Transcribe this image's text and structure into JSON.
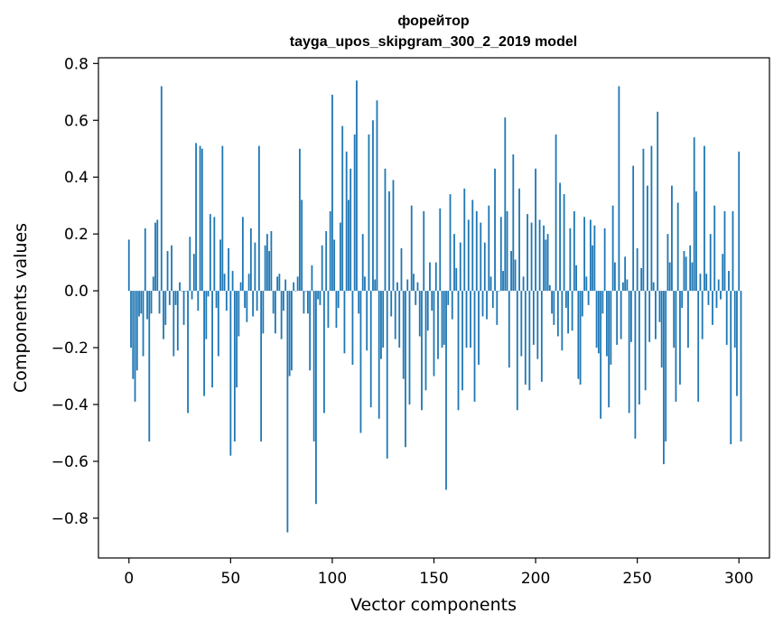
{
  "chart_data": {
    "type": "bar",
    "title_lines": [
      "форейтор",
      "tayga_upos_skipgram_300_2_2019 model"
    ],
    "xlabel": "Vector components",
    "ylabel": "Components values",
    "xlim": [
      -15,
      315
    ],
    "ylim": [
      -0.94,
      0.82
    ],
    "xticks": [
      0,
      50,
      100,
      150,
      200,
      250,
      300
    ],
    "yticks": [
      0.8,
      0.6,
      0.4,
      0.2,
      0.0,
      -0.2,
      -0.4,
      -0.6,
      -0.8
    ],
    "ytick_labels": [
      "0.8",
      "0.6",
      "0.4",
      "0.2",
      "0.0",
      "−0.2",
      "−0.4",
      "−0.6",
      "−0.8"
    ],
    "bar_color": "#1f77b4",
    "grid": false,
    "legend": "none",
    "values": [
      0.18,
      -0.2,
      -0.31,
      -0.39,
      -0.28,
      -0.09,
      -0.08,
      -0.23,
      0.22,
      -0.1,
      -0.53,
      -0.08,
      0.05,
      0.24,
      0.25,
      -0.08,
      0.72,
      -0.17,
      -0.12,
      0.14,
      -0.05,
      0.16,
      -0.23,
      -0.05,
      -0.21,
      0.03,
      0.0,
      -0.12,
      0.0,
      -0.43,
      0.19,
      -0.03,
      0.13,
      0.52,
      -0.07,
      0.51,
      0.5,
      -0.37,
      -0.17,
      -0.02,
      0.27,
      -0.34,
      0.26,
      -0.06,
      -0.23,
      0.18,
      0.51,
      0.06,
      -0.07,
      0.15,
      -0.58,
      0.07,
      -0.53,
      -0.34,
      -0.16,
      0.03,
      0.26,
      -0.06,
      -0.11,
      0.06,
      0.22,
      -0.09,
      0.17,
      -0.07,
      0.51,
      -0.53,
      -0.15,
      0.16,
      0.2,
      0.14,
      0.21,
      -0.08,
      -0.15,
      0.05,
      0.06,
      -0.17,
      -0.07,
      0.04,
      -0.85,
      -0.3,
      -0.28,
      0.03,
      0.0,
      0.05,
      0.5,
      0.32,
      -0.08,
      0.0,
      -0.08,
      -0.28,
      0.09,
      -0.53,
      -0.75,
      -0.03,
      -0.05,
      0.16,
      -0.43,
      0.21,
      -0.13,
      0.28,
      0.69,
      0.18,
      -0.13,
      -0.06,
      0.24,
      0.58,
      -0.22,
      0.49,
      0.32,
      0.43,
      -0.26,
      0.55,
      0.74,
      -0.08,
      -0.5,
      0.2,
      0.05,
      -0.21,
      0.55,
      -0.41,
      0.6,
      0.04,
      0.67,
      -0.45,
      -0.24,
      -0.2,
      0.43,
      -0.59,
      0.35,
      -0.09,
      0.39,
      -0.17,
      0.03,
      -0.2,
      0.15,
      -0.31,
      -0.55,
      0.04,
      -0.4,
      0.3,
      0.06,
      -0.05,
      0.03,
      -0.16,
      -0.42,
      0.28,
      -0.35,
      -0.14,
      0.1,
      -0.07,
      -0.3,
      0.1,
      -0.24,
      0.29,
      -0.2,
      -0.19,
      -0.7,
      -0.05,
      0.34,
      -0.1,
      0.2,
      0.08,
      -0.42,
      0.17,
      -0.35,
      0.36,
      -0.2,
      0.25,
      -0.2,
      0.32,
      -0.39,
      0.28,
      -0.26,
      0.24,
      -0.09,
      0.17,
      -0.1,
      0.3,
      0.05,
      -0.06,
      0.43,
      -0.12,
      0.0,
      0.26,
      0.07,
      0.61,
      0.28,
      -0.27,
      0.14,
      0.48,
      0.11,
      -0.42,
      0.36,
      -0.23,
      0.05,
      -0.33,
      0.27,
      -0.35,
      0.24,
      -0.19,
      0.43,
      -0.24,
      0.25,
      -0.32,
      0.23,
      0.18,
      0.2,
      0.02,
      -0.08,
      -0.12,
      0.55,
      -0.16,
      0.38,
      -0.21,
      0.34,
      -0.06,
      -0.15,
      0.22,
      -0.14,
      0.28,
      0.09,
      -0.31,
      -0.33,
      -0.09,
      0.26,
      0.05,
      -0.05,
      0.25,
      0.16,
      0.23,
      -0.2,
      -0.22,
      -0.45,
      -0.08,
      0.22,
      -0.23,
      -0.41,
      -0.26,
      0.3,
      0.1,
      -0.19,
      0.72,
      -0.17,
      0.03,
      0.12,
      0.04,
      -0.43,
      -0.18,
      0.44,
      -0.52,
      0.15,
      -0.4,
      0.08,
      0.5,
      -0.35,
      0.37,
      -0.18,
      0.51,
      0.03,
      -0.17,
      0.63,
      -0.11,
      -0.27,
      -0.61,
      -0.53,
      0.2,
      0.1,
      0.37,
      -0.2,
      -0.39,
      0.31,
      -0.33,
      -0.06,
      0.14,
      0.12,
      -0.2,
      0.16,
      0.1,
      0.54,
      0.35,
      -0.39,
      0.06,
      -0.17,
      0.51,
      0.06,
      -0.05,
      0.2,
      -0.12,
      0.3,
      -0.06,
      0.04,
      -0.03,
      0.13,
      0.28,
      -0.19,
      0.07,
      -0.54,
      0.28,
      -0.2,
      -0.37,
      0.49,
      -0.53
    ]
  }
}
